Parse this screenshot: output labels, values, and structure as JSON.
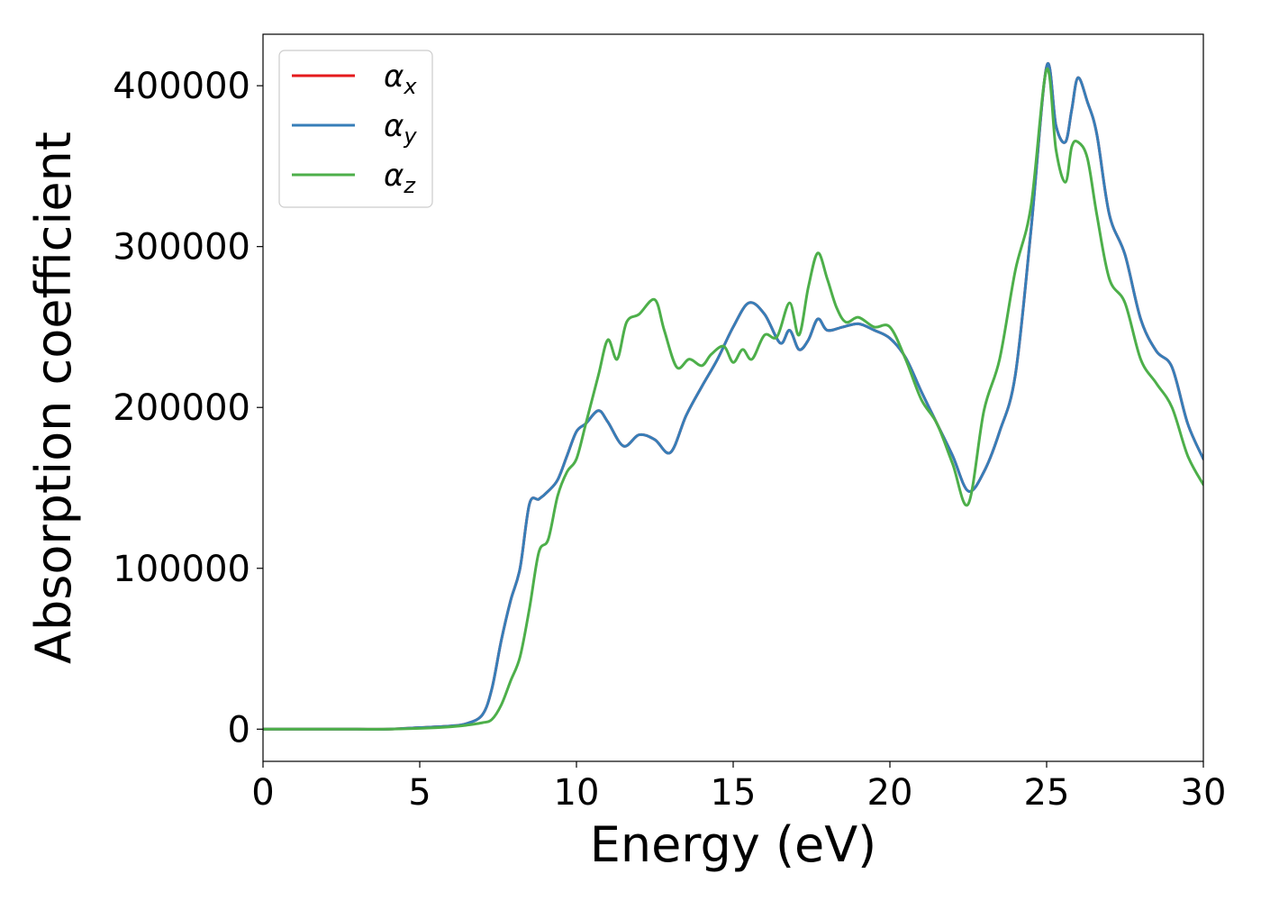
{
  "chart_data": {
    "type": "line",
    "title": "",
    "xlabel": "Energy (eV)",
    "ylabel": "Absorption coefficient",
    "xlim": [
      0,
      30
    ],
    "ylim": [
      -20000,
      432000
    ],
    "xticks": [
      0,
      5,
      10,
      15,
      20,
      25,
      30
    ],
    "xtick_labels": [
      "0",
      "5",
      "10",
      "15",
      "20",
      "25",
      "30"
    ],
    "yticks": [
      0,
      100000,
      200000,
      300000,
      400000
    ],
    "ytick_labels": [
      "0",
      "100000",
      "200000",
      "300000",
      "400000"
    ],
    "grid": false,
    "legend_position": "top-left",
    "series": [
      {
        "name": "α",
        "subscript": "x",
        "color": "#e41a1c",
        "x": [
          0,
          1,
          2,
          3,
          4,
          5,
          6,
          6.5,
          7,
          7.3,
          7.6,
          7.9,
          8.2,
          8.5,
          8.8,
          9.1,
          9.4,
          9.7,
          10,
          10.3,
          10.7,
          11,
          11.5,
          12,
          12.5,
          13,
          13.5,
          14,
          14.5,
          15,
          15.5,
          16,
          16.5,
          16.8,
          17.1,
          17.4,
          17.7,
          18,
          18.5,
          19,
          19.5,
          20,
          20.5,
          21,
          21.5,
          22,
          22.5,
          23,
          23.5,
          24,
          24.5,
          25,
          25.3,
          25.6,
          25.8,
          26,
          26.3,
          26.6,
          27,
          27.5,
          28,
          28.5,
          29,
          29.5,
          30
        ],
        "y": [
          0,
          0,
          0,
          0,
          0,
          1000,
          2000,
          3500,
          9000,
          25000,
          55000,
          80000,
          100000,
          140000,
          143000,
          148000,
          155000,
          170000,
          185000,
          190000,
          198000,
          191000,
          176000,
          183000,
          180000,
          172000,
          195000,
          213000,
          230000,
          250000,
          265000,
          258000,
          240000,
          248000,
          236000,
          242000,
          255000,
          248000,
          250000,
          252000,
          248000,
          243000,
          231000,
          210000,
          190000,
          170000,
          148000,
          160000,
          185000,
          220000,
          310000,
          412000,
          375000,
          365000,
          385000,
          405000,
          390000,
          370000,
          320000,
          295000,
          255000,
          235000,
          225000,
          190000,
          168000
        ]
      },
      {
        "name": "α",
        "subscript": "y",
        "color": "#377eb8",
        "x": [
          0,
          1,
          2,
          3,
          4,
          5,
          6,
          6.5,
          7,
          7.3,
          7.6,
          7.9,
          8.2,
          8.5,
          8.8,
          9.1,
          9.4,
          9.7,
          10,
          10.3,
          10.7,
          11,
          11.5,
          12,
          12.5,
          13,
          13.5,
          14,
          14.5,
          15,
          15.5,
          16,
          16.5,
          16.8,
          17.1,
          17.4,
          17.7,
          18,
          18.5,
          19,
          19.5,
          20,
          20.5,
          21,
          21.5,
          22,
          22.5,
          23,
          23.5,
          24,
          24.5,
          25,
          25.3,
          25.6,
          25.8,
          26,
          26.3,
          26.6,
          27,
          27.5,
          28,
          28.5,
          29,
          29.5,
          30
        ],
        "y": [
          0,
          0,
          0,
          0,
          0,
          1000,
          2000,
          3500,
          9000,
          25000,
          55000,
          80000,
          100000,
          140000,
          143000,
          148000,
          155000,
          170000,
          185000,
          190000,
          198000,
          191000,
          176000,
          183000,
          180000,
          172000,
          195000,
          213000,
          230000,
          250000,
          265000,
          258000,
          240000,
          248000,
          236000,
          242000,
          255000,
          248000,
          250000,
          252000,
          248000,
          243000,
          231000,
          210000,
          190000,
          170000,
          148000,
          160000,
          185000,
          220000,
          310000,
          412000,
          375000,
          365000,
          385000,
          405000,
          390000,
          370000,
          320000,
          295000,
          255000,
          235000,
          225000,
          190000,
          168000
        ]
      },
      {
        "name": "α",
        "subscript": "z",
        "color": "#4daf4a",
        "x": [
          0,
          1,
          2,
          3,
          4,
          5,
          6,
          6.5,
          7,
          7.3,
          7.6,
          7.9,
          8.2,
          8.5,
          8.8,
          9.1,
          9.4,
          9.7,
          10,
          10.3,
          10.7,
          11,
          11.3,
          11.6,
          12,
          12.5,
          12.8,
          13.2,
          13.6,
          14,
          14.3,
          14.7,
          15,
          15.3,
          15.6,
          16,
          16.4,
          16.8,
          17.1,
          17.4,
          17.7,
          18,
          18.3,
          18.6,
          19,
          19.5,
          20,
          20.5,
          21,
          21.5,
          22,
          22.5,
          23,
          23.5,
          24,
          24.5,
          25,
          25.3,
          25.6,
          25.8,
          26,
          26.3,
          26.6,
          27,
          27.5,
          28,
          28.5,
          29,
          29.5,
          30
        ],
        "y": [
          0,
          0,
          0,
          0,
          0,
          500,
          1500,
          2500,
          4000,
          6000,
          15000,
          30000,
          45000,
          75000,
          110000,
          118000,
          145000,
          160000,
          168000,
          190000,
          220000,
          242000,
          230000,
          253000,
          258000,
          267000,
          248000,
          225000,
          230000,
          226000,
          233000,
          238000,
          228000,
          236000,
          230000,
          245000,
          244000,
          265000,
          245000,
          275000,
          296000,
          280000,
          262000,
          253000,
          256000,
          250000,
          250000,
          230000,
          205000,
          190000,
          165000,
          140000,
          198000,
          230000,
          285000,
          325000,
          410000,
          360000,
          340000,
          362000,
          365000,
          355000,
          320000,
          280000,
          265000,
          230000,
          215000,
          200000,
          170000,
          152000
        ]
      }
    ]
  }
}
